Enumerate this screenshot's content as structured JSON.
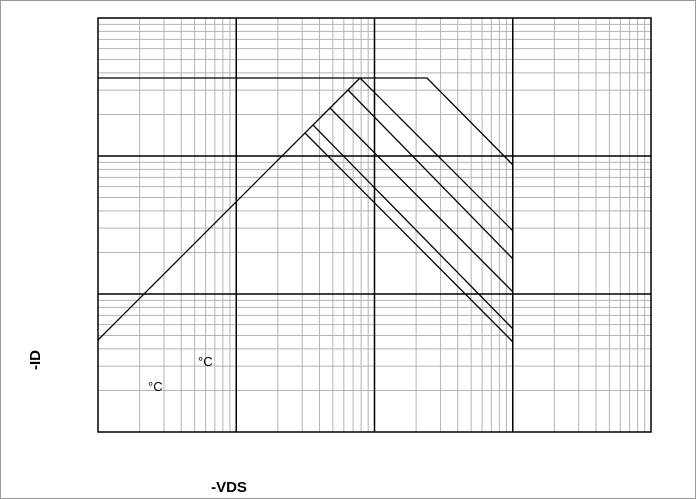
{
  "chart_data": {
    "type": "line",
    "x_label": "-VDS",
    "y_label": "-ID",
    "annotations": [
      "°C",
      "°C"
    ]
  }
}
